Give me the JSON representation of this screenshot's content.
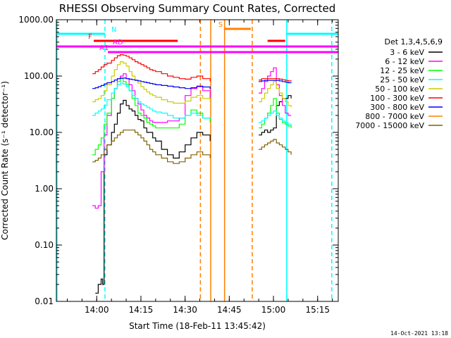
{
  "chart_data": {
    "type": "line",
    "title": "RHESSI Observing Summary Count Rates, Corrected",
    "xlabel": "Start Time (18-Feb-11 13:45:42)",
    "ylabel": "Corrected Count Rate (s⁻¹ detector⁻¹)",
    "y_scale": "log",
    "ylim": [
      0.01,
      1000
    ],
    "xlim_minutes": [
      -13.7,
      82
    ],
    "x_ticks": [
      {
        "minute": 0,
        "label": "14:00"
      },
      {
        "minute": 15,
        "label": "14:15"
      },
      {
        "minute": 30,
        "label": "14:30"
      },
      {
        "minute": 45,
        "label": "14:45"
      },
      {
        "minute": 60,
        "label": "15:00"
      },
      {
        "minute": 75,
        "label": "15:15"
      }
    ],
    "y_ticks": [
      {
        "value": 1000,
        "label": "1000.00"
      },
      {
        "value": 100,
        "label": "100.00"
      },
      {
        "value": 10,
        "label": "10.00"
      },
      {
        "value": 1,
        "label": "1.00"
      },
      {
        "value": 0.1,
        "label": "0.10"
      },
      {
        "value": 0.01,
        "label": "0.01"
      }
    ],
    "legend_title": "Det 1,3,4,5,6,9",
    "legend_position": "right",
    "series": [
      {
        "name": "3 - 6 keV",
        "color": "#000000",
        "x": [
          -0.5,
          0.5,
          1.5,
          2.0,
          2.5,
          3.5,
          5,
          6,
          7,
          8,
          9,
          10,
          11,
          12,
          13,
          14,
          15,
          16,
          17,
          18,
          19,
          20,
          22,
          24,
          26,
          28,
          30,
          32,
          34,
          36,
          38.5,
          55,
          56,
          57,
          58,
          59,
          60,
          61,
          62,
          63,
          64,
          65,
          66
        ],
        "y": [
          0.014,
          0.02,
          0.025,
          0.02,
          4,
          6,
          10,
          14,
          22,
          32,
          37,
          30,
          26,
          24,
          20,
          17,
          16,
          12,
          10,
          10,
          8,
          7,
          5,
          4,
          3.5,
          4.5,
          6,
          8,
          10,
          9,
          7,
          9,
          10,
          11,
          10,
          11,
          12,
          30,
          35,
          40,
          40,
          45,
          40
        ]
      },
      {
        "name": "6 - 12 keV",
        "color": "#ff00ff",
        "x": [
          -1.5,
          -0.5,
          0.5,
          1.5,
          2.5,
          3.5,
          5,
          6,
          7,
          8,
          9,
          10,
          11,
          12,
          13,
          14,
          15,
          16,
          17,
          18,
          19,
          20,
          22,
          24,
          26,
          28,
          30,
          32,
          34,
          36,
          38.5,
          55,
          56,
          57,
          58,
          59,
          60,
          61,
          62,
          63,
          64,
          65,
          66
        ],
        "y": [
          0.5,
          0.45,
          0.5,
          2,
          9,
          20,
          40,
          60,
          90,
          100,
          110,
          90,
          70,
          55,
          40,
          32,
          25,
          20,
          18,
          16,
          15,
          15,
          15,
          16,
          16,
          18,
          45,
          60,
          65,
          55,
          40,
          50,
          60,
          80,
          100,
          120,
          140,
          70,
          45,
          30,
          22,
          20,
          20
        ]
      },
      {
        "name": "12 - 25 keV",
        "color": "#00ff00",
        "x": [
          -1.5,
          -0.5,
          0.5,
          1.5,
          2.5,
          3.5,
          5,
          6,
          7,
          8,
          9,
          10,
          11,
          12,
          13,
          14,
          15,
          16,
          17,
          18,
          19,
          20,
          22,
          24,
          26,
          28,
          30,
          32,
          34,
          36,
          38.5,
          55,
          56,
          57,
          58,
          59,
          60,
          61,
          62,
          63,
          64,
          65,
          66
        ],
        "y": [
          4,
          5,
          6,
          8,
          14,
          22,
          40,
          60,
          80,
          90,
          80,
          70,
          55,
          40,
          30,
          22,
          20,
          18,
          15,
          14,
          13,
          12,
          12,
          12,
          12,
          14,
          20,
          25,
          22,
          18,
          15,
          12,
          14,
          18,
          22,
          30,
          40,
          22,
          17,
          15,
          14,
          13,
          12
        ]
      },
      {
        "name": "25 - 50 keV",
        "color": "#00ffff",
        "x": [
          -1.5,
          -0.5,
          0.5,
          1.5,
          2.5,
          3.5,
          5,
          6,
          7,
          8,
          9,
          10,
          11,
          12,
          13,
          14,
          15,
          16,
          17,
          18,
          19,
          20,
          22,
          24,
          26,
          28,
          30,
          32,
          34,
          36,
          38.5,
          55,
          56,
          57,
          58,
          59,
          60,
          61,
          62,
          63,
          64,
          65,
          66
        ],
        "y": [
          20,
          22,
          24,
          26,
          30,
          38,
          50,
          60,
          70,
          75,
          72,
          65,
          55,
          45,
          40,
          35,
          32,
          30,
          28,
          26,
          24,
          23,
          22,
          20,
          18,
          18,
          20,
          22,
          20,
          18,
          17,
          15,
          16,
          18,
          20,
          22,
          24,
          20,
          18,
          16,
          15,
          14,
          13
        ]
      },
      {
        "name": "50 - 100 keV",
        "color": "#cccc00",
        "x": [
          -1.5,
          -0.5,
          0.5,
          1.5,
          2.5,
          3.5,
          5,
          6,
          7,
          8,
          9,
          10,
          11,
          12,
          13,
          14,
          15,
          16,
          17,
          18,
          19,
          20,
          22,
          24,
          26,
          28,
          30,
          32,
          34,
          36,
          38.5,
          55,
          56,
          57,
          58,
          59,
          60,
          61,
          62,
          63,
          64,
          65,
          66
        ],
        "y": [
          35,
          38,
          40,
          45,
          55,
          70,
          100,
          130,
          160,
          180,
          170,
          150,
          120,
          100,
          85,
          75,
          65,
          58,
          52,
          48,
          45,
          42,
          38,
          35,
          33,
          33,
          36,
          42,
          45,
          40,
          35,
          35,
          40,
          50,
          60,
          70,
          80,
          60,
          50,
          40,
          35,
          30,
          28
        ]
      },
      {
        "name": "100 - 300 keV",
        "color": "#ff0000",
        "x": [
          -1.5,
          -0.5,
          0.5,
          1.5,
          2.5,
          3.5,
          5,
          6,
          7,
          8,
          9,
          10,
          11,
          12,
          13,
          14,
          15,
          16,
          17,
          18,
          19,
          20,
          22,
          24,
          26,
          28,
          30,
          32,
          34,
          36,
          38.5,
          55,
          56,
          57,
          58,
          59,
          60,
          61,
          62,
          63,
          64,
          65,
          66
        ],
        "y": [
          110,
          120,
          130,
          145,
          160,
          170,
          190,
          210,
          230,
          240,
          235,
          225,
          210,
          195,
          180,
          170,
          160,
          150,
          140,
          130,
          125,
          120,
          110,
          100,
          95,
          90,
          88,
          95,
          100,
          90,
          80,
          85,
          90,
          90,
          90,
          90,
          90,
          90,
          88,
          86,
          84,
          82,
          80
        ]
      },
      {
        "name": "300 - 800 keV",
        "color": "#0000ff",
        "x": [
          -1.5,
          -0.5,
          0.5,
          1.5,
          2.5,
          3.5,
          5,
          6,
          7,
          8,
          9,
          10,
          11,
          12,
          13,
          14,
          15,
          16,
          17,
          18,
          19,
          20,
          22,
          24,
          26,
          28,
          30,
          32,
          34,
          36,
          38.5,
          55,
          56,
          57,
          58,
          59,
          60,
          61,
          62,
          63,
          64,
          65,
          66
        ],
        "y": [
          60,
          62,
          65,
          68,
          72,
          76,
          80,
          85,
          90,
          92,
          92,
          90,
          88,
          86,
          84,
          82,
          80,
          78,
          76,
          74,
          72,
          70,
          68,
          66,
          64,
          62,
          60,
          62,
          66,
          64,
          58,
          80,
          82,
          84,
          84,
          84,
          84,
          84,
          82,
          80,
          78,
          76,
          75
        ]
      },
      {
        "name": "800 - 7000 keV",
        "color": "#ff8000",
        "x": [],
        "y": []
      },
      {
        "name": "7000 - 15000 keV",
        "color": "#806000",
        "x": [
          -1.5,
          -0.5,
          0.5,
          1.5,
          2.5,
          3.5,
          5,
          6,
          7,
          8,
          9,
          10,
          11,
          12,
          13,
          14,
          15,
          16,
          17,
          18,
          19,
          20,
          22,
          24,
          26,
          28,
          30,
          32,
          34,
          36,
          38.5,
          55,
          56,
          57,
          58,
          59,
          60,
          61,
          62,
          63,
          64,
          65,
          66
        ],
        "y": [
          3,
          3.2,
          3.5,
          4,
          5,
          6,
          7,
          8,
          9,
          10,
          11,
          11,
          11,
          11,
          10,
          9,
          8,
          7,
          6,
          5,
          4.5,
          4,
          3.5,
          3,
          2.8,
          3,
          3.5,
          4,
          4.5,
          4,
          3.5,
          5,
          5.5,
          6,
          6.5,
          7,
          7.5,
          6.5,
          6,
          5.5,
          5,
          4.5,
          4
        ]
      }
    ],
    "annotations": {
      "flags": [
        {
          "label": "N",
          "color": "#00ffff",
          "segments": [
            [
              -13.7,
              2.8
            ],
            [
              64.5,
              82
            ]
          ]
        },
        {
          "label": "F",
          "color": "#ff0000",
          "segments": [
            [
              -1,
              27.5
            ],
            [
              58,
              64
            ]
          ]
        },
        {
          "label": "S",
          "color": "#ff8000",
          "segments": [
            [
              43.2,
              52.3
            ]
          ]
        },
        {
          "label": "AD",
          "color": "#ff00ff",
          "segments": [
            [
              -13.7,
              82
            ]
          ]
        },
        {
          "label": "A1",
          "color": "#ff00ff",
          "segments": [
            [
              3.8,
              82
            ]
          ]
        }
      ],
      "vertical_lines": [
        {
          "minute": 2.8,
          "color": "#00ffff",
          "style": "dashed"
        },
        {
          "minute": 64.5,
          "color": "#00ffff",
          "style": "solid"
        },
        {
          "minute": 79.8,
          "color": "#00ffff",
          "style": "dashed"
        },
        {
          "minute": -13.5,
          "color": "#00ffff",
          "style": "solid"
        },
        {
          "minute": 38.7,
          "color": "#ff8000",
          "style": "solid"
        },
        {
          "minute": 43.4,
          "color": "#ff8000",
          "style": "solid"
        },
        {
          "minute": 35.2,
          "color": "#ff8000",
          "style": "dashed"
        },
        {
          "minute": 52.8,
          "color": "#ff8000",
          "style": "dashed"
        }
      ]
    },
    "footer_date": "14-Oct-2021 13:18"
  }
}
